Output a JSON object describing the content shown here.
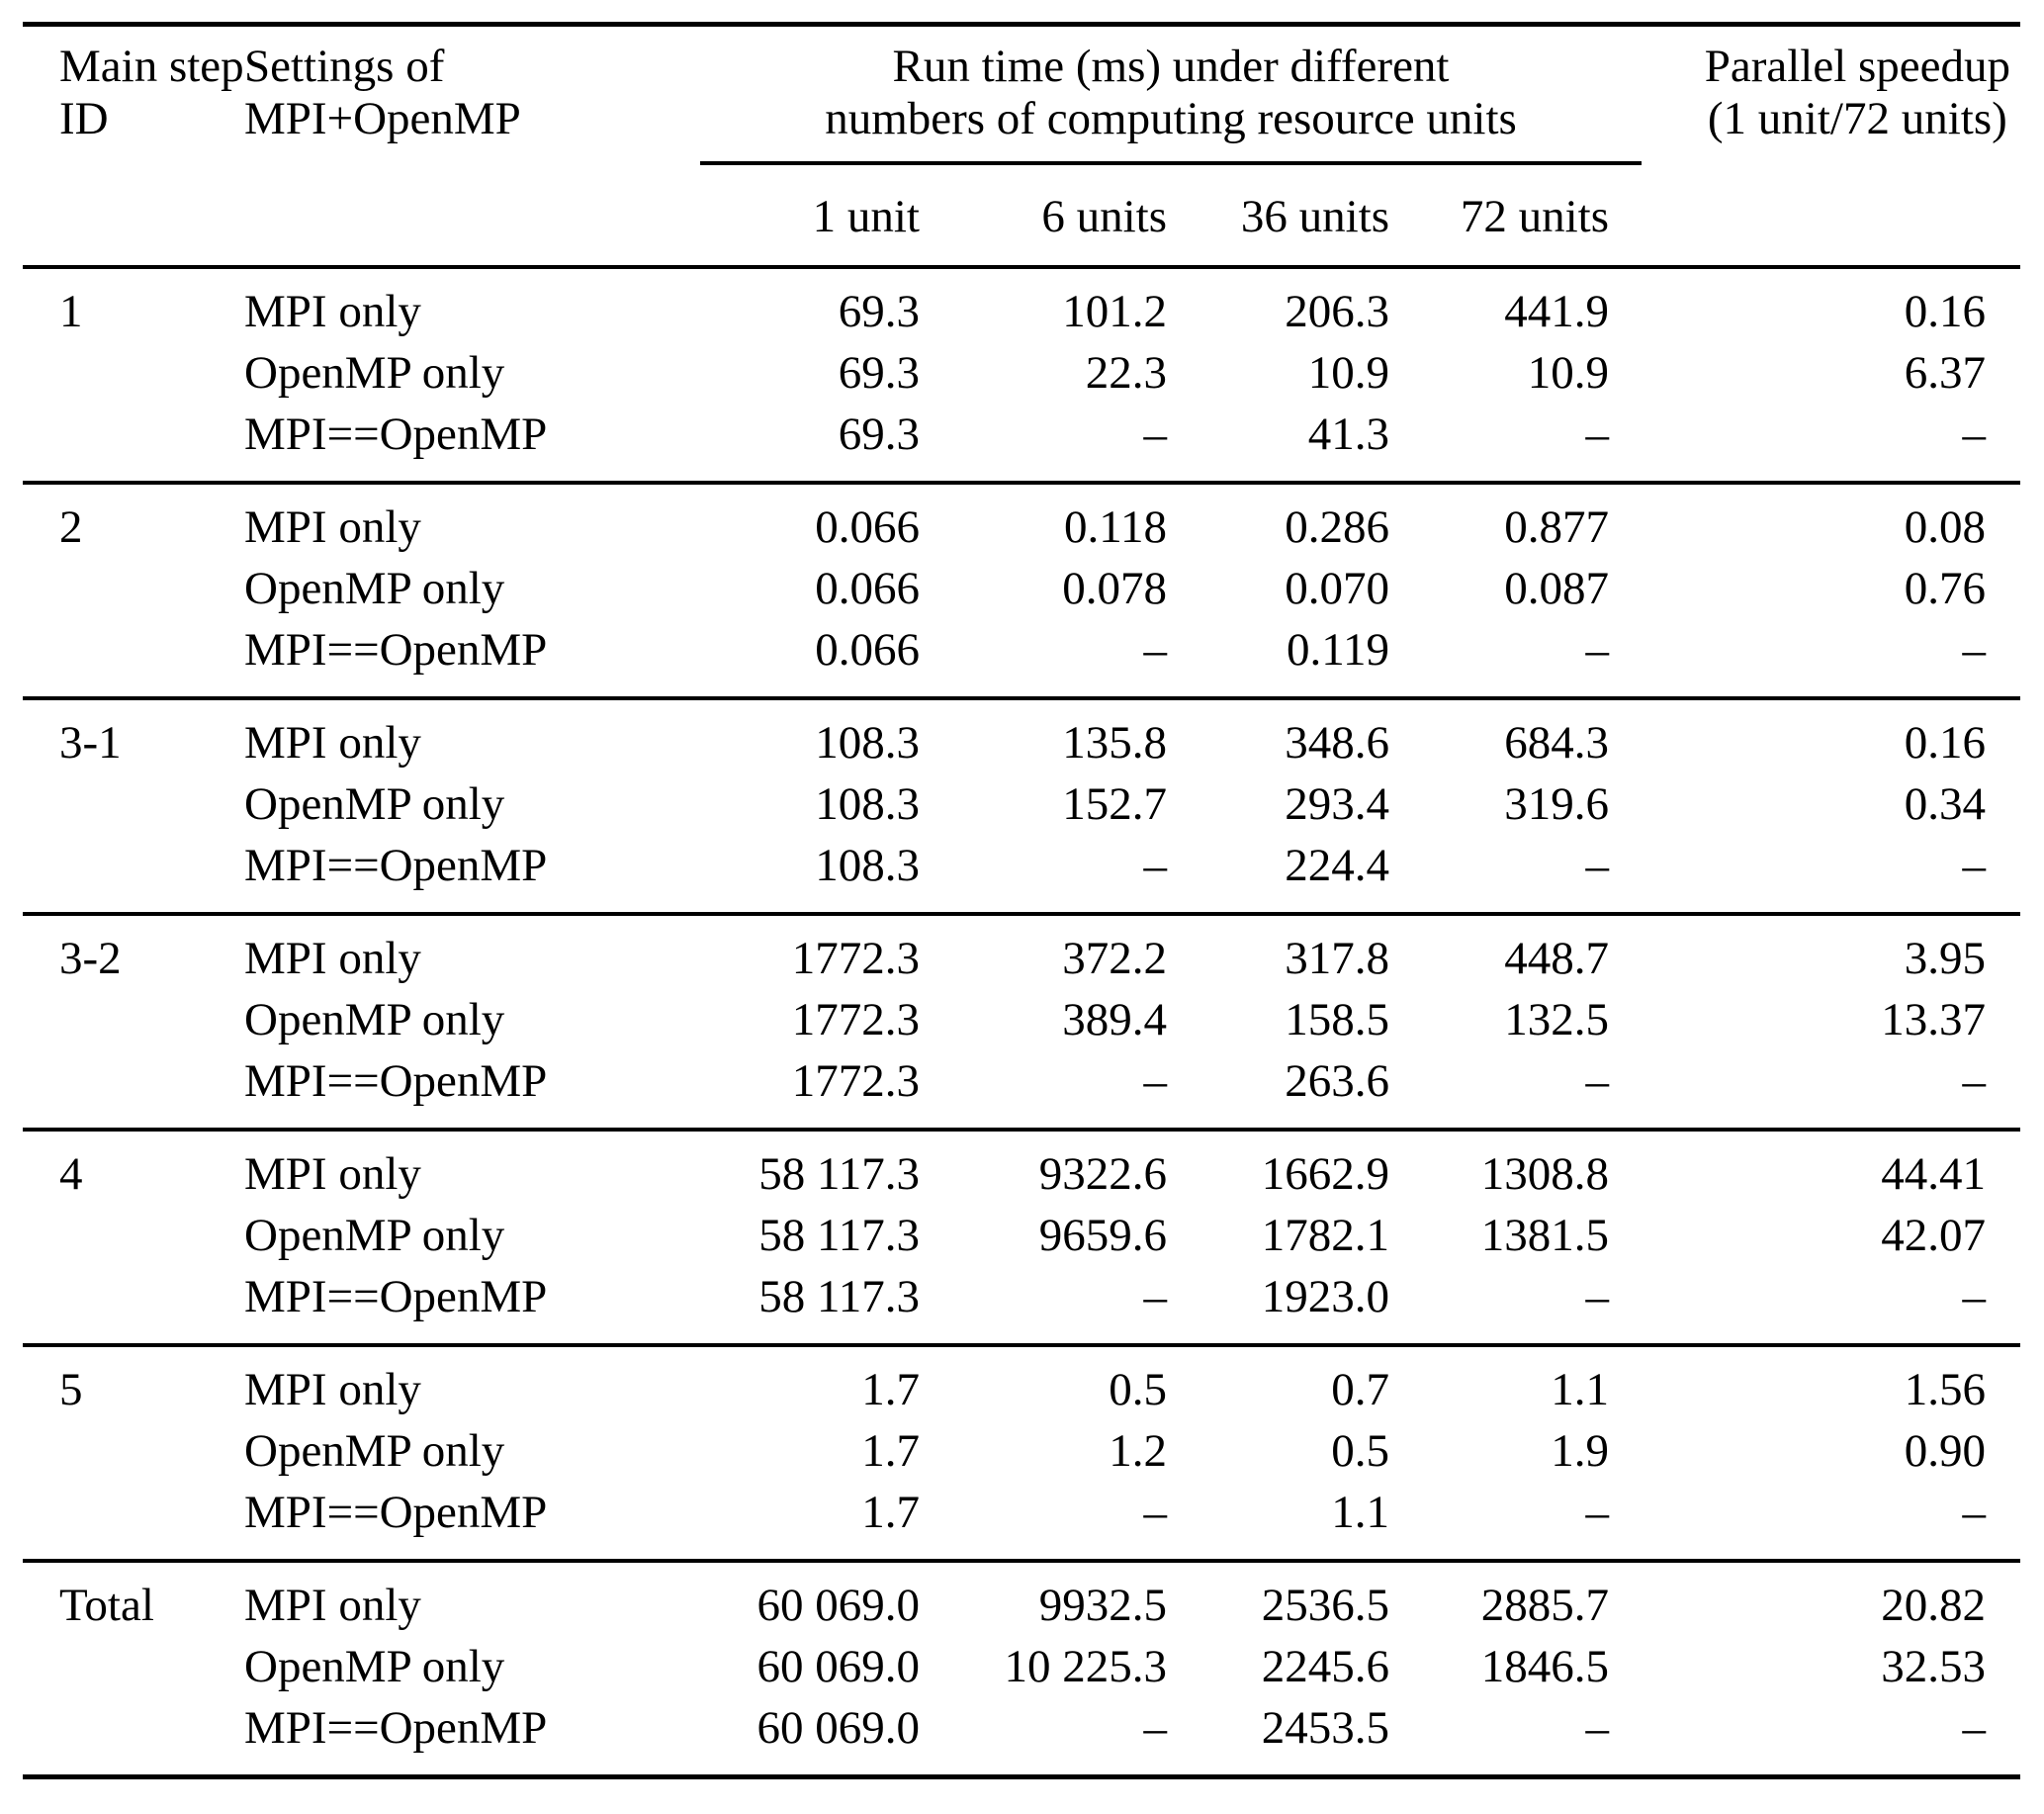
{
  "table": {
    "header": {
      "main_step": [
        "Main step",
        "ID"
      ],
      "settings": [
        "Settings of",
        "MPI+OpenMP"
      ],
      "runtime": [
        "Run time (ms) under different",
        "numbers of computing resource units"
      ],
      "speedup": [
        "Parallel speedup",
        "(1 unit/72 units)"
      ],
      "units": [
        "1 unit",
        "6 units",
        "36 units",
        "72 units"
      ]
    },
    "groups": [
      {
        "id": "1",
        "rows": [
          {
            "setting": "MPI only",
            "values": [
              "69.3",
              "101.2",
              "206.3",
              "441.9"
            ],
            "speedup": "0.16"
          },
          {
            "setting": "OpenMP only",
            "values": [
              "69.3",
              "22.3",
              "10.9",
              "10.9"
            ],
            "speedup": "6.37"
          },
          {
            "setting": "MPI==OpenMP",
            "values": [
              "69.3",
              "–",
              "41.3",
              "–"
            ],
            "speedup": "–"
          }
        ]
      },
      {
        "id": "2",
        "rows": [
          {
            "setting": "MPI only",
            "values": [
              "0.066",
              "0.118",
              "0.286",
              "0.877"
            ],
            "speedup": "0.08"
          },
          {
            "setting": "OpenMP only",
            "values": [
              "0.066",
              "0.078",
              "0.070",
              "0.087"
            ],
            "speedup": "0.76"
          },
          {
            "setting": "MPI==OpenMP",
            "values": [
              "0.066",
              "–",
              "0.119",
              "–"
            ],
            "speedup": "–"
          }
        ]
      },
      {
        "id": "3-1",
        "rows": [
          {
            "setting": "MPI only",
            "values": [
              "108.3",
              "135.8",
              "348.6",
              "684.3"
            ],
            "speedup": "0.16"
          },
          {
            "setting": "OpenMP only",
            "values": [
              "108.3",
              "152.7",
              "293.4",
              "319.6"
            ],
            "speedup": "0.34"
          },
          {
            "setting": "MPI==OpenMP",
            "values": [
              "108.3",
              "–",
              "224.4",
              "–"
            ],
            "speedup": "–"
          }
        ]
      },
      {
        "id": "3-2",
        "rows": [
          {
            "setting": "MPI only",
            "values": [
              "1772.3",
              "372.2",
              "317.8",
              "448.7"
            ],
            "speedup": "3.95"
          },
          {
            "setting": "OpenMP only",
            "values": [
              "1772.3",
              "389.4",
              "158.5",
              "132.5"
            ],
            "speedup": "13.37"
          },
          {
            "setting": "MPI==OpenMP",
            "values": [
              "1772.3",
              "–",
              "263.6",
              "–"
            ],
            "speedup": "–"
          }
        ]
      },
      {
        "id": "4",
        "rows": [
          {
            "setting": "MPI only",
            "values": [
              "58 117.3",
              "9322.6",
              "1662.9",
              "1308.8"
            ],
            "speedup": "44.41"
          },
          {
            "setting": "OpenMP only",
            "values": [
              "58 117.3",
              "9659.6",
              "1782.1",
              "1381.5"
            ],
            "speedup": "42.07"
          },
          {
            "setting": "MPI==OpenMP",
            "values": [
              "58 117.3",
              "–",
              "1923.0",
              "–"
            ],
            "speedup": "–"
          }
        ]
      },
      {
        "id": "5",
        "rows": [
          {
            "setting": "MPI only",
            "values": [
              "1.7",
              "0.5",
              "0.7",
              "1.1"
            ],
            "speedup": "1.56"
          },
          {
            "setting": "OpenMP only",
            "values": [
              "1.7",
              "1.2",
              "0.5",
              "1.9"
            ],
            "speedup": "0.90"
          },
          {
            "setting": "MPI==OpenMP",
            "values": [
              "1.7",
              "–",
              "1.1",
              "–"
            ],
            "speedup": "–"
          }
        ]
      },
      {
        "id": "Total",
        "rows": [
          {
            "setting": "MPI only",
            "values": [
              "60 069.0",
              "9932.5",
              "2536.5",
              "2885.7"
            ],
            "speedup": "20.82"
          },
          {
            "setting": "OpenMP only",
            "values": [
              "60 069.0",
              "10 225.3",
              "2245.6",
              "1846.5"
            ],
            "speedup": "32.53"
          },
          {
            "setting": "MPI==OpenMP",
            "values": [
              "60 069.0",
              "–",
              "2453.5",
              "–"
            ],
            "speedup": "–"
          }
        ]
      }
    ]
  }
}
